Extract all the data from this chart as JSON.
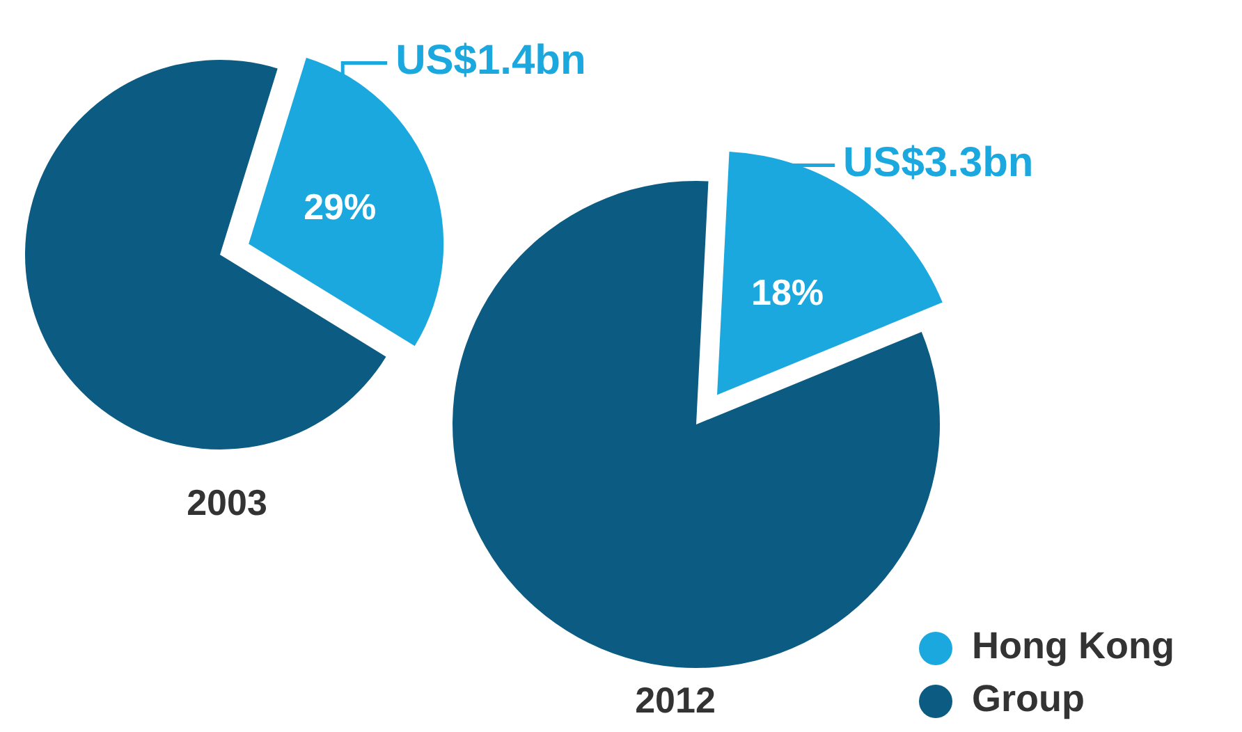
{
  "chart_data": [
    {
      "type": "pie",
      "title": "2003",
      "categories": [
        null,
        null
      ],
      "values": [
        29,
        71
      ],
      "colors": [
        "#1ba8de",
        "#0b5b82"
      ],
      "value_labels": [
        "29%",
        null
      ],
      "annotations": [
        "US$1.4bn"
      ]
    },
    {
      "type": "pie",
      "title": "2012",
      "categories": [
        "Hong Kong",
        "Group"
      ],
      "values": [
        18,
        82
      ],
      "colors": [
        "#1ba8de",
        "#0b5b82"
      ],
      "value_labels": [
        "18%",
        null
      ],
      "annotations": [
        "US$3.3bn"
      ],
      "legend": "bottom right"
    }
  ]
}
